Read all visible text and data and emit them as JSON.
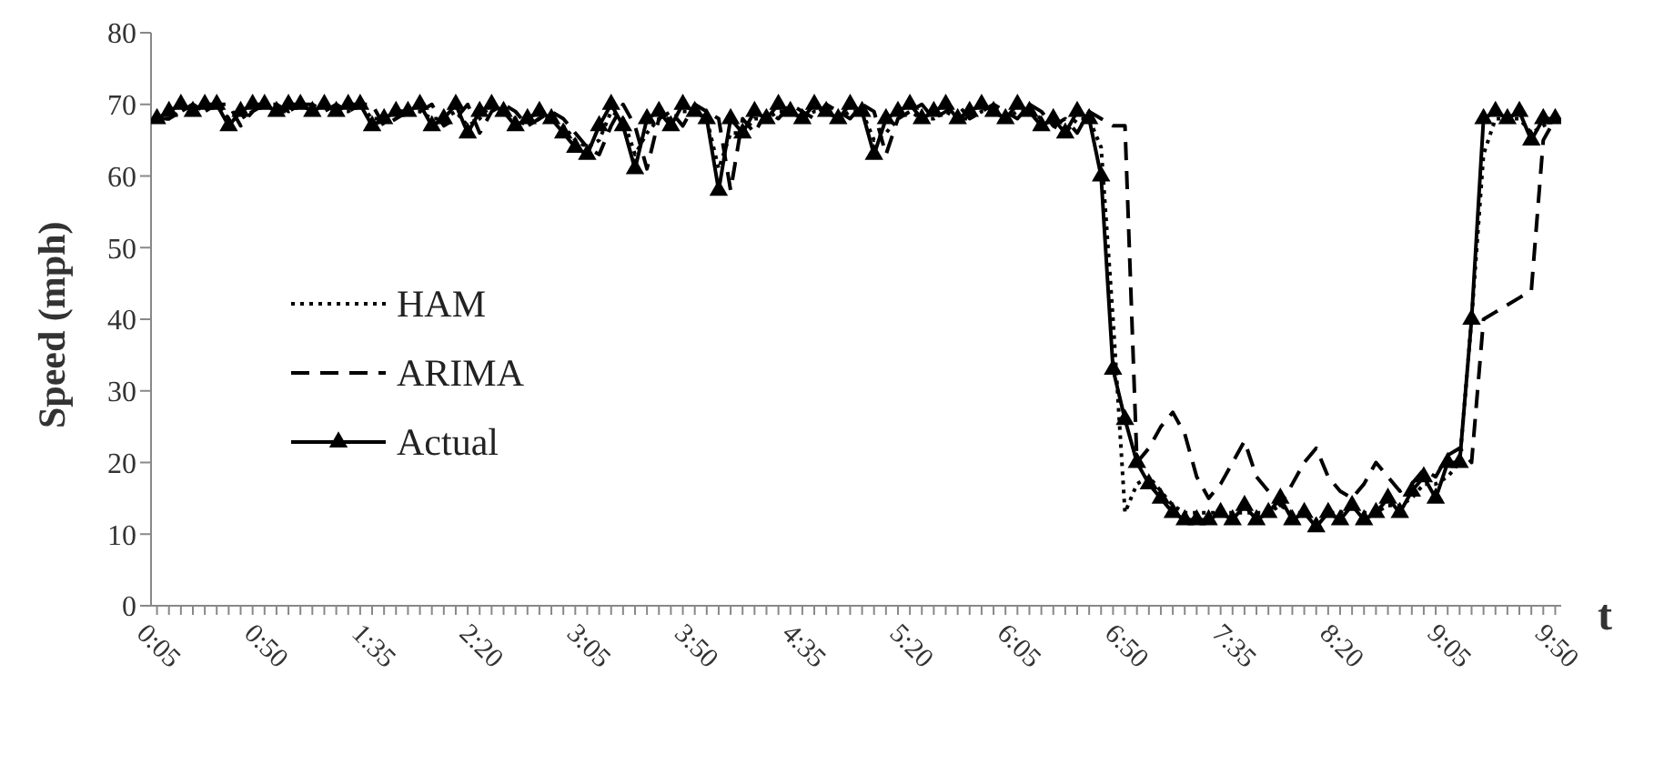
{
  "chart_data": {
    "type": "line",
    "ylabel": "Speed (mph)",
    "xlabel": "t",
    "categories": [
      "0:05",
      null,
      null,
      null,
      null,
      null,
      null,
      null,
      null,
      "0:50",
      null,
      null,
      null,
      null,
      null,
      null,
      null,
      null,
      "1:35",
      null,
      null,
      null,
      null,
      null,
      null,
      null,
      null,
      "2:20",
      null,
      null,
      null,
      null,
      null,
      null,
      null,
      null,
      "3:05",
      null,
      null,
      null,
      null,
      null,
      null,
      null,
      null,
      "3:50",
      null,
      null,
      null,
      null,
      null,
      null,
      null,
      null,
      "4:35",
      null,
      null,
      null,
      null,
      null,
      null,
      null,
      null,
      "5:20",
      null,
      null,
      null,
      null,
      null,
      null,
      null,
      null,
      "6:05",
      null,
      null,
      null,
      null,
      null,
      null,
      null,
      null,
      "6:50",
      null,
      null,
      null,
      null,
      null,
      null,
      null,
      null,
      "7:35",
      null,
      null,
      null,
      null,
      null,
      null,
      null,
      null,
      "8:20",
      null,
      null,
      null,
      null,
      null,
      null,
      null,
      null,
      "9:05",
      null,
      null,
      null,
      null,
      null,
      null,
      null,
      null,
      "9:50"
    ],
    "series": [
      {
        "name": "HAM",
        "color": "#000000",
        "line_style": "dotted",
        "marker": "none",
        "values": [
          68,
          68,
          69,
          70,
          69,
          70,
          68,
          68,
          69,
          70,
          69,
          69,
          70,
          69,
          70,
          69,
          69,
          70,
          68,
          68,
          69,
          69,
          69,
          68,
          68,
          69,
          67,
          68,
          70,
          69,
          68,
          67,
          68,
          68,
          67,
          65,
          64,
          65,
          69,
          68,
          63,
          66,
          68,
          68,
          69,
          69,
          68,
          61,
          66,
          66,
          68,
          68,
          69,
          69,
          68,
          69,
          69,
          68,
          69,
          69,
          65,
          66,
          68,
          69,
          68,
          68,
          69,
          68,
          68,
          69,
          69,
          68,
          69,
          69,
          68,
          67,
          66,
          68,
          68,
          64,
          40,
          13,
          17,
          18,
          16,
          14,
          13,
          13,
          13,
          13,
          13,
          13,
          13,
          13,
          14,
          13,
          13,
          12,
          13,
          13,
          14,
          13,
          13,
          14,
          14,
          15,
          17,
          17,
          18,
          20,
          40,
          63,
          68,
          68,
          68,
          66,
          67,
          68
        ]
      },
      {
        "name": "ARIMA",
        "color": "#000000",
        "line_style": "dashed",
        "marker": "none",
        "values": [
          68,
          68,
          69,
          70,
          69,
          70,
          70,
          67,
          69,
          70,
          70,
          69,
          70,
          70,
          69,
          70,
          69,
          70,
          70,
          67,
          68,
          69,
          69,
          70,
          67,
          68,
          70,
          66,
          69,
          70,
          69,
          67,
          68,
          69,
          68,
          66,
          64,
          63,
          67,
          70,
          67,
          61,
          68,
          69,
          67,
          70,
          69,
          68,
          58,
          68,
          66,
          69,
          68,
          70,
          69,
          68,
          70,
          69,
          68,
          70,
          69,
          63,
          68,
          69,
          70,
          68,
          69,
          70,
          68,
          69,
          70,
          69,
          68,
          70,
          69,
          67,
          68,
          66,
          69,
          68,
          67,
          67,
          20,
          22,
          25,
          27,
          24,
          18,
          15,
          17,
          20,
          23,
          18,
          16,
          14,
          17,
          20,
          22,
          18,
          16,
          15,
          17,
          20,
          18,
          16,
          17,
          19,
          18,
          21,
          22,
          20,
          40,
          41,
          42,
          43,
          44,
          65,
          68
        ]
      },
      {
        "name": "Actual",
        "color": "#000000",
        "line_style": "solid",
        "marker": "triangle",
        "values": [
          68,
          69,
          70,
          69,
          70,
          70,
          67,
          69,
          70,
          70,
          69,
          70,
          70,
          69,
          70,
          69,
          70,
          70,
          67,
          68,
          69,
          69,
          70,
          67,
          68,
          70,
          66,
          69,
          70,
          69,
          67,
          68,
          69,
          68,
          66,
          64,
          63,
          67,
          70,
          67,
          61,
          68,
          69,
          67,
          70,
          69,
          68,
          58,
          68,
          66,
          69,
          68,
          70,
          69,
          68,
          70,
          69,
          68,
          70,
          69,
          63,
          68,
          69,
          70,
          68,
          69,
          70,
          68,
          69,
          70,
          69,
          68,
          70,
          69,
          67,
          68,
          66,
          69,
          68,
          60,
          33,
          26,
          20,
          17,
          15,
          13,
          12,
          12,
          12,
          13,
          12,
          14,
          12,
          13,
          15,
          12,
          13,
          11,
          13,
          12,
          14,
          12,
          13,
          15,
          13,
          16,
          18,
          15,
          20,
          20,
          40,
          68,
          69,
          68,
          69,
          65,
          68,
          68
        ]
      }
    ],
    "ylim": [
      0,
      80
    ],
    "yticks": [
      0,
      10,
      20,
      30,
      40,
      50,
      60,
      70,
      80
    ],
    "grid": false,
    "legend": "left"
  }
}
